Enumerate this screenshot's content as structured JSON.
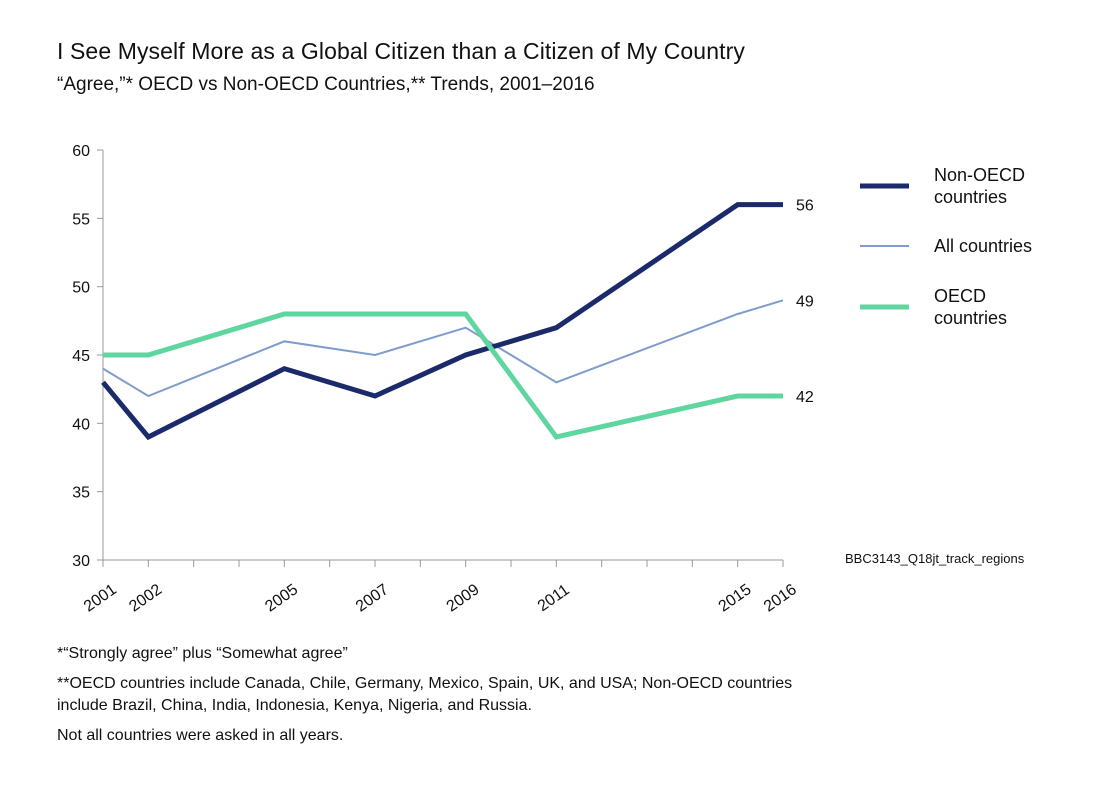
{
  "colors": {
    "non_oecd": "#1b2a6b",
    "all": "#7f9ccd",
    "oecd": "#5fd6a0",
    "axis": "#999999"
  },
  "chart_data": {
    "type": "line",
    "title": "I See Myself More as a Global Citizen than a Citizen of My Country",
    "subtitle": "“Agree,”* OECD vs Non-OECD Countries,** Trends, 2001–2016",
    "x": [
      2001,
      2002,
      2005,
      2007,
      2009,
      2011,
      2015,
      2016
    ],
    "x_tick_labels": [
      "2001",
      "2002",
      "2005",
      "2007",
      "2009",
      "2011",
      "2015",
      "2016"
    ],
    "y_ticks": [
      30,
      35,
      40,
      45,
      50,
      55,
      60
    ],
    "ylim": [
      30,
      60
    ],
    "xlim": [
      2001,
      2016
    ],
    "grid": false,
    "legend_position": "right",
    "series": [
      {
        "name": "Non-OECD countries",
        "legend_lines": [
          "Non-OECD",
          "countries"
        ],
        "color_key": "non_oecd",
        "width": "thick",
        "values": [
          43,
          39,
          44,
          42,
          45,
          47,
          56,
          56
        ],
        "end_label": "56"
      },
      {
        "name": "All countries",
        "legend_lines": [
          "All countries"
        ],
        "color_key": "all",
        "width": "thin",
        "values": [
          44,
          42,
          46,
          45,
          47,
          43,
          48,
          49
        ],
        "end_label": "49"
      },
      {
        "name": "OECD countries",
        "legend_lines": [
          "OECD",
          "countries"
        ],
        "color_key": "oecd",
        "width": "thick",
        "values": [
          45,
          45,
          48,
          48,
          48,
          39,
          42,
          42
        ],
        "end_label": "42"
      }
    ],
    "source_code": "BBC3143_Q18jt_track_regions"
  },
  "notes": {
    "note1": "*“Strongly agree” plus “Somewhat agree”",
    "note2": "**OECD countries include Canada, Chile, Germany, Mexico, Spain, UK, and USA; Non-OECD countries include Brazil, China, India, Indonesia, Kenya, Nigeria, and Russia.",
    "note3": "Not all countries were asked in all years."
  }
}
